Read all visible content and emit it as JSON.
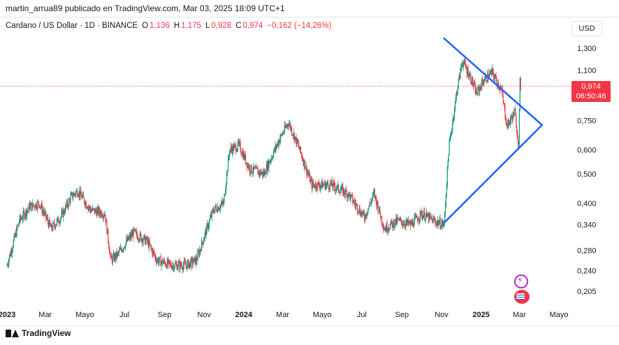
{
  "caption": "martin_arrua89 publicado en TradingView.com, Mar 03, 2025 18:09 UTC+1",
  "legend": {
    "symbol": "Cardano / US Dollar · 1D · BINANCE",
    "o_label": "O",
    "o_value": "1,136",
    "h_label": "H",
    "h_value": "1,175",
    "l_label": "L",
    "l_value": "0,928",
    "c_label": "C",
    "c_value": "0,974",
    "change": "−0,162 (−14,26%)"
  },
  "currency": "USD",
  "price_tag": {
    "price": "0,974",
    "countdown": "06:50:46"
  },
  "brand": "TradingView",
  "colors": {
    "up": "#089981",
    "down": "#f23645",
    "triangle": "#2962ff",
    "price_line": "#f23645"
  },
  "icons": {
    "alert": "lightning-icon",
    "flag": "us-flag-icon",
    "logo": "tradingview-logo-icon"
  },
  "chart_data": {
    "type": "candlestick",
    "y_scale": "log",
    "y_ticks": [
      {
        "value": 1.3,
        "label": "1,300"
      },
      {
        "value": 1.1,
        "label": "1,100"
      },
      {
        "value": 0.75,
        "label": "0,750"
      },
      {
        "value": 0.6,
        "label": "0,600"
      },
      {
        "value": 0.5,
        "label": "0,500"
      },
      {
        "value": 0.4,
        "label": "0,400"
      },
      {
        "value": 0.34,
        "label": "0,340"
      },
      {
        "value": 0.28,
        "label": "0,280"
      },
      {
        "value": 0.24,
        "label": "0,240"
      },
      {
        "value": 0.205,
        "label": "0,205"
      }
    ],
    "x_ticks": [
      {
        "date": "2023-01",
        "label": "2023",
        "bold": true
      },
      {
        "date": "2023-03",
        "label": "Mar"
      },
      {
        "date": "2023-05",
        "label": "Mayo"
      },
      {
        "date": "2023-07",
        "label": "Jul"
      },
      {
        "date": "2023-09",
        "label": "Sep"
      },
      {
        "date": "2023-11",
        "label": "Nov"
      },
      {
        "date": "2024-01",
        "label": "2024",
        "bold": true
      },
      {
        "date": "2024-03",
        "label": "Mar"
      },
      {
        "date": "2024-05",
        "label": "Mayo"
      },
      {
        "date": "2024-07",
        "label": "Jul"
      },
      {
        "date": "2024-09",
        "label": "Sep"
      },
      {
        "date": "2024-11",
        "label": "Nov"
      },
      {
        "date": "2025-01",
        "label": "2025",
        "bold": true
      },
      {
        "date": "2025-03",
        "label": "Mar"
      },
      {
        "date": "2025-05",
        "label": "Mayo"
      }
    ],
    "price_path": [
      [
        "2023-01-01",
        0.25
      ],
      [
        "2023-01-20",
        0.35
      ],
      [
        "2023-02-05",
        0.39
      ],
      [
        "2023-02-20",
        0.4
      ],
      [
        "2023-03-10",
        0.33
      ],
      [
        "2023-03-25",
        0.36
      ],
      [
        "2023-04-10",
        0.42
      ],
      [
        "2023-04-20",
        0.44
      ],
      [
        "2023-05-10",
        0.38
      ],
      [
        "2023-06-01",
        0.37
      ],
      [
        "2023-06-10",
        0.26
      ],
      [
        "2023-06-20",
        0.27
      ],
      [
        "2023-07-05",
        0.3
      ],
      [
        "2023-07-15",
        0.32
      ],
      [
        "2023-08-05",
        0.3
      ],
      [
        "2023-08-20",
        0.26
      ],
      [
        "2023-09-10",
        0.25
      ],
      [
        "2023-10-05",
        0.25
      ],
      [
        "2023-10-20",
        0.26
      ],
      [
        "2023-11-01",
        0.31
      ],
      [
        "2023-11-15",
        0.38
      ],
      [
        "2023-12-01",
        0.4
      ],
      [
        "2023-12-10",
        0.6
      ],
      [
        "2023-12-25",
        0.62
      ],
      [
        "2024-01-10",
        0.52
      ],
      [
        "2024-02-01",
        0.5
      ],
      [
        "2024-02-25",
        0.65
      ],
      [
        "2024-03-10",
        0.74
      ],
      [
        "2024-03-25",
        0.62
      ],
      [
        "2024-04-15",
        0.46
      ],
      [
        "2024-05-15",
        0.46
      ],
      [
        "2024-06-10",
        0.43
      ],
      [
        "2024-07-05",
        0.36
      ],
      [
        "2024-07-20",
        0.43
      ],
      [
        "2024-08-05",
        0.33
      ],
      [
        "2024-08-25",
        0.35
      ],
      [
        "2024-09-15",
        0.34
      ],
      [
        "2024-10-01",
        0.37
      ],
      [
        "2024-10-20",
        0.35
      ],
      [
        "2024-11-05",
        0.34
      ],
      [
        "2024-11-12",
        0.6
      ],
      [
        "2024-11-25",
        0.95
      ],
      [
        "2024-12-03",
        1.18
      ],
      [
        "2024-12-15",
        1.05
      ],
      [
        "2024-12-25",
        0.92
      ],
      [
        "2025-01-05",
        1.02
      ],
      [
        "2025-01-18",
        1.08
      ],
      [
        "2025-02-01",
        0.95
      ],
      [
        "2025-02-10",
        0.72
      ],
      [
        "2025-02-22",
        0.8
      ],
      [
        "2025-02-28",
        0.62
      ],
      [
        "2025-03-02",
        1.0
      ],
      [
        "2025-03-03",
        0.974
      ]
    ],
    "pattern_lines": [
      {
        "from": [
          "2024-11-05",
          0.345
        ],
        "to": [
          "2025-04-05",
          0.725
        ]
      },
      {
        "from": [
          "2024-11-05",
          1.4
        ],
        "to": [
          "2025-04-05",
          0.725
        ]
      }
    ],
    "last_price": 0.974
  }
}
